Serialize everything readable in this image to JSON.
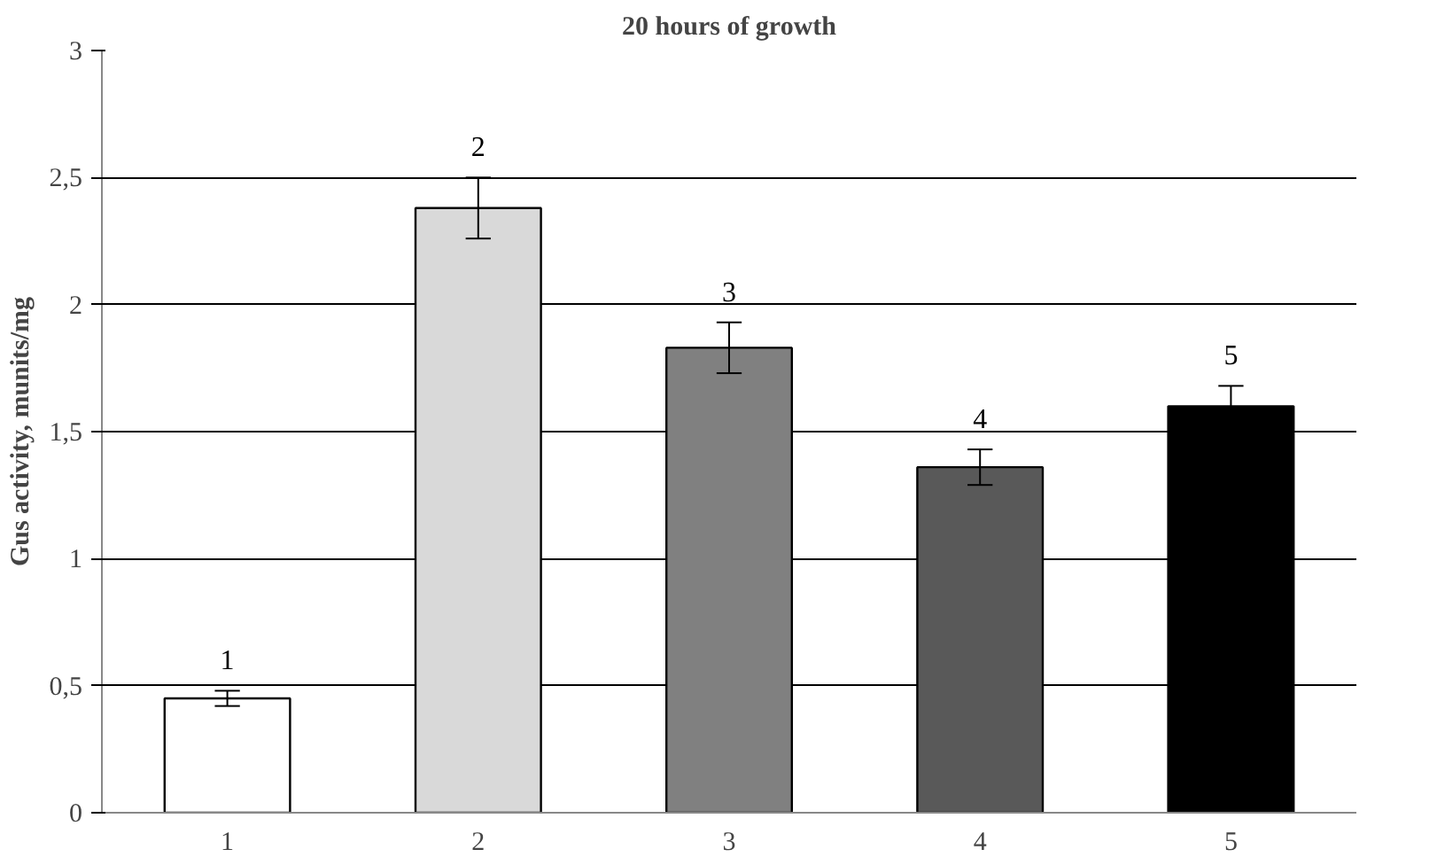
{
  "chart_data": {
    "type": "bar",
    "title": "20 hours of growth",
    "ylabel": "Gus activity, munits/mg",
    "categories": [
      "1",
      "2",
      "3",
      "4",
      "5"
    ],
    "values": [
      0.45,
      2.38,
      1.83,
      1.36,
      1.6
    ],
    "colors": [
      "#ffffff",
      "#d9d9d9",
      "#808080",
      "#595959",
      "#000000"
    ],
    "errors": [
      0.03,
      0.12,
      0.1,
      0.07,
      0.08
    ],
    "ylim": [
      0,
      3
    ],
    "yticks": [
      0,
      {
        "value": 0.5,
        "label": "0,5"
      },
      1,
      {
        "value": 1.5,
        "label": "1,5"
      },
      2,
      {
        "value": 2.5,
        "label": "2,5"
      },
      3
    ],
    "grid": "y",
    "annotations": [
      "1",
      "2",
      "3",
      "4",
      "5"
    ]
  }
}
